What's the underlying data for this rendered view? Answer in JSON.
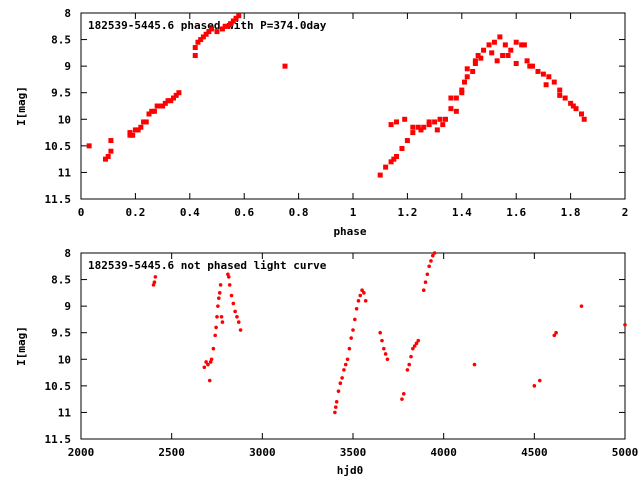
{
  "chart_data": [
    {
      "type": "scatter",
      "title": "182539-5445.6 phased with P=374.0day",
      "xlabel": "phase",
      "ylabel": "I[mag]",
      "xlim": [
        0,
        2
      ],
      "ylim": [
        11.5,
        8
      ],
      "y_inverted": true,
      "xticks": [
        "0",
        "0.2",
        "0.4",
        "0.6",
        "0.8",
        "1",
        "1.2",
        "1.4",
        "1.6",
        "1.8",
        "2"
      ],
      "yticks": [
        "8",
        "8.5",
        "9",
        "9.5",
        "10",
        "10.5",
        "11",
        "11.5"
      ],
      "marker": "filled-square",
      "color": "#ff0000",
      "series": [
        {
          "x": [
            0.03,
            0.09,
            0.1,
            0.11,
            0.11,
            0.18,
            0.18,
            0.19,
            0.2,
            0.21,
            0.22,
            0.23,
            0.24,
            0.25,
            0.26,
            0.27,
            0.28,
            0.29,
            0.3,
            0.31,
            0.32,
            0.33,
            0.34,
            0.35,
            0.36,
            0.42,
            0.42,
            0.43,
            0.44,
            0.45,
            0.46,
            0.47,
            0.48,
            0.5,
            0.52,
            0.53,
            0.54,
            0.55,
            0.56,
            0.57,
            0.58,
            0.75,
            1.1,
            1.12,
            1.14,
            1.15,
            1.16,
            1.18,
            1.2,
            1.22,
            1.24,
            1.26,
            1.28,
            1.3,
            1.32,
            1.34,
            1.36,
            1.38,
            1.4,
            1.41,
            1.42,
            1.44,
            1.45,
            1.46,
            1.48,
            1.5,
            1.52,
            1.54,
            1.56,
            1.58,
            1.6,
            1.62,
            1.64,
            1.66,
            1.68,
            1.7,
            1.72,
            1.74,
            1.76,
            1.78,
            1.8,
            1.82,
            1.84,
            1.85,
            1.16,
            1.22,
            1.28,
            1.33,
            1.38,
            1.42,
            1.47,
            1.51,
            1.55,
            1.6,
            1.65,
            1.71,
            1.76,
            1.81,
            1.14,
            1.19,
            1.25,
            1.31,
            1.36,
            1.4,
            1.45,
            1.53,
            1.57,
            1.63
          ],
          "y": [
            10.5,
            10.75,
            10.7,
            10.6,
            10.4,
            10.3,
            10.25,
            10.3,
            10.2,
            10.2,
            10.15,
            10.05,
            10.05,
            9.9,
            9.85,
            9.85,
            9.75,
            9.75,
            9.75,
            9.7,
            9.65,
            9.65,
            9.6,
            9.55,
            9.5,
            8.8,
            8.65,
            8.55,
            8.5,
            8.45,
            8.4,
            8.35,
            8.3,
            8.35,
            8.3,
            8.25,
            8.25,
            8.2,
            8.15,
            8.1,
            8.05,
            9.0,
            11.05,
            10.9,
            10.8,
            10.75,
            10.7,
            10.55,
            10.4,
            10.25,
            10.15,
            10.15,
            10.1,
            10.05,
            10.0,
            10.0,
            9.8,
            9.6,
            9.5,
            9.3,
            9.2,
            9.1,
            8.9,
            8.8,
            8.7,
            8.6,
            8.55,
            8.45,
            8.6,
            8.7,
            8.55,
            8.6,
            8.9,
            9.0,
            9.1,
            9.15,
            9.2,
            9.3,
            9.45,
            9.6,
            9.7,
            9.8,
            9.9,
            10.0,
            10.05,
            10.15,
            10.05,
            10.1,
            9.85,
            9.05,
            8.85,
            8.75,
            8.8,
            8.95,
            9.0,
            9.35,
            9.55,
            9.75,
            10.1,
            10.0,
            10.2,
            10.2,
            9.6,
            9.45,
            8.95,
            8.9,
            8.8,
            8.6
          ]
        }
      ]
    },
    {
      "type": "scatter",
      "title": "182539-5445.6 not phased light curve",
      "xlabel": "hjd0",
      "ylabel": "I[mag]",
      "xlim": [
        2000,
        5000
      ],
      "ylim": [
        11.5,
        8
      ],
      "y_inverted": true,
      "xticks": [
        "2000",
        "2500",
        "3000",
        "3500",
        "4000",
        "4500",
        "5000"
      ],
      "yticks": [
        "8",
        "8.5",
        "9",
        "9.5",
        "10",
        "10.5",
        "11",
        "11.5"
      ],
      "marker": "filled-dot",
      "color": "#ff0000",
      "series": [
        {
          "x": [
            2400,
            2405,
            2410,
            2680,
            2690,
            2700,
            2710,
            2715,
            2720,
            2730,
            2740,
            2745,
            2750,
            2755,
            2760,
            2765,
            2770,
            2775,
            2780,
            2810,
            2815,
            2820,
            2830,
            2840,
            2850,
            2860,
            2870,
            2880,
            3400,
            3405,
            3410,
            3420,
            3430,
            3440,
            3450,
            3460,
            3470,
            3480,
            3490,
            3500,
            3510,
            3520,
            3530,
            3540,
            3550,
            3560,
            3570,
            3650,
            3660,
            3670,
            3680,
            3690,
            3770,
            3780,
            3800,
            3810,
            3820,
            3830,
            3840,
            3850,
            3860,
            3890,
            3900,
            3910,
            3920,
            3930,
            3940,
            3950,
            4170,
            4500,
            4530,
            4610,
            4620,
            4760,
            5000
          ],
          "y": [
            8.6,
            8.55,
            8.45,
            10.15,
            10.05,
            10.1,
            10.4,
            10.05,
            10.0,
            9.8,
            9.55,
            9.4,
            9.2,
            9.0,
            8.85,
            8.75,
            8.6,
            9.2,
            9.3,
            8.4,
            8.45,
            8.6,
            8.8,
            8.95,
            9.1,
            9.2,
            9.3,
            9.45,
            11.0,
            10.9,
            10.8,
            10.6,
            10.45,
            10.35,
            10.2,
            10.1,
            10.0,
            9.8,
            9.6,
            9.45,
            9.25,
            9.05,
            8.9,
            8.8,
            8.7,
            8.75,
            8.9,
            9.5,
            9.65,
            9.8,
            9.9,
            10.0,
            10.75,
            10.65,
            10.2,
            10.1,
            9.95,
            9.8,
            9.75,
            9.7,
            9.65,
            8.7,
            8.55,
            8.4,
            8.25,
            8.15,
            8.05,
            8.0,
            10.1,
            10.5,
            10.4,
            9.55,
            9.5,
            9.0,
            9.35
          ]
        }
      ]
    }
  ]
}
